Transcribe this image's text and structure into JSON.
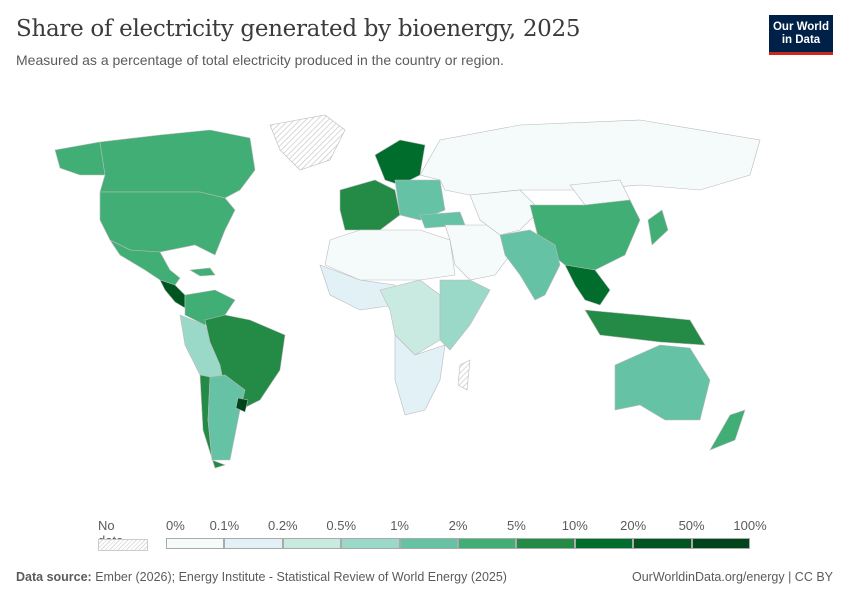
{
  "header": {
    "title": "Share of electricity generated by bioenergy, 2025",
    "subtitle": "Measured as a percentage of total electricity produced in the country or region.",
    "logo": "Our World in Data"
  },
  "legend": {
    "no_data_label": "No data",
    "ticks": [
      "0%",
      "0.1%",
      "0.2%",
      "0.5%",
      "1%",
      "2%",
      "5%",
      "10%",
      "20%",
      "50%",
      "100%"
    ],
    "colors": [
      "#f5fbfb",
      "#e1f1f6",
      "#c9eae0",
      "#9ad8c7",
      "#66c2a4",
      "#41ae76",
      "#238b45",
      "#006d2c",
      "#00541f",
      "#00441b"
    ],
    "no_data_color": "hatched-gray"
  },
  "map_regions": {
    "canada": 5,
    "usa": 5,
    "alaska": 5,
    "greenland": -1,
    "mexico": 5,
    "central_america": 8,
    "caribbean": 5,
    "colombia_venezuela": 5,
    "peru_bolivia": 3,
    "brazil": 6,
    "argentina": 4,
    "chile": 6,
    "uruguay": 9,
    "western_europe": 6,
    "nordics": 7,
    "eastern_europe": 4,
    "russia": 0,
    "turkey": 4,
    "north_africa": 0,
    "west_africa": 1,
    "central_africa": 2,
    "east_africa": 3,
    "southern_africa": 1,
    "madagascar": -1,
    "middle_east": 0,
    "central_asia": 0,
    "china": 5,
    "mongolia": 0,
    "india": 4,
    "southeast_asia": 7,
    "indonesia": 6,
    "japan": 5,
    "australia": 4,
    "new_zealand": 5
  },
  "footer": {
    "source_label": "Data source:",
    "source": "Ember (2026); Energy Institute - Statistical Review of World Energy (2025)",
    "url": "OurWorldinData.org/energy | CC BY"
  }
}
